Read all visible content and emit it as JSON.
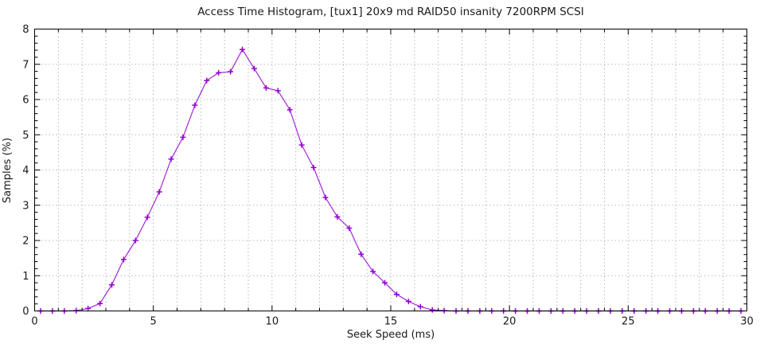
{
  "window": {
    "background": "#ffffff"
  },
  "chart_data": {
    "type": "line",
    "title": "Access Time Histogram, [tux1] 20x9 md RAID50 insanity 7200RPM SCSI",
    "xlabel": "Seek Speed (ms)",
    "ylabel": "Samples (%)",
    "xlim": [
      0,
      30
    ],
    "ylim": [
      0,
      8
    ],
    "x_major_ticks": [
      0,
      5,
      10,
      15,
      20,
      25,
      30
    ],
    "x_tick_labels": [
      "0",
      "5",
      "10",
      "15",
      "20",
      "25",
      "30"
    ],
    "x_minor_step": 1,
    "y_major_ticks": [
      0,
      1,
      2,
      3,
      4,
      5,
      6,
      7,
      8
    ],
    "y_tick_labels": [
      "0",
      "1",
      "2",
      "3",
      "4",
      "5",
      "6",
      "7",
      "8"
    ],
    "y_minor_step": 0.2,
    "grid": {
      "show": true,
      "style": "dotted",
      "x_every": 1,
      "y_every": 1,
      "color": "#b9b9b9"
    },
    "legend": "none",
    "marker": "plus",
    "border": "box-with-mirrored-inward-ticks",
    "series": [
      {
        "name": "samples",
        "color": "#9400d3",
        "x": [
          0.25,
          0.75,
          1.25,
          1.75,
          2.25,
          2.75,
          3.25,
          3.75,
          4.25,
          4.75,
          5.25,
          5.75,
          6.25,
          6.75,
          7.25,
          7.75,
          8.25,
          8.75,
          9.25,
          9.75,
          10.25,
          10.75,
          11.25,
          11.75,
          12.25,
          12.75,
          13.25,
          13.75,
          14.25,
          14.75,
          15.25,
          15.75,
          16.25,
          16.75,
          17.25,
          17.75,
          18.25,
          18.75,
          19.25,
          19.75,
          20.25,
          20.75,
          21.25,
          21.75,
          22.25,
          22.75,
          23.25,
          23.75,
          24.25,
          24.75,
          25.25,
          25.75,
          26.25,
          26.75,
          27.25,
          27.75,
          28.25,
          28.75,
          29.25,
          29.75
        ],
        "y": [
          0,
          0,
          0,
          0.01,
          0.07,
          0.21,
          0.74,
          1.46,
          2.0,
          2.66,
          3.38,
          4.31,
          4.93,
          5.84,
          6.54,
          6.76,
          6.79,
          7.42,
          6.88,
          6.33,
          6.25,
          5.71,
          4.71,
          4.07,
          3.22,
          2.67,
          2.35,
          1.61,
          1.12,
          0.8,
          0.47,
          0.27,
          0.12,
          0.03,
          0.01,
          0,
          0,
          0,
          0,
          0,
          0,
          0,
          0,
          0,
          0,
          0,
          0,
          0,
          0,
          0,
          0,
          0,
          0,
          0,
          0,
          0,
          0,
          0,
          0,
          0
        ]
      }
    ]
  },
  "colors": {
    "series": "#9400d3",
    "grid": "#b9b9b9",
    "border": "#000000",
    "text": "#1a1a1a"
  }
}
